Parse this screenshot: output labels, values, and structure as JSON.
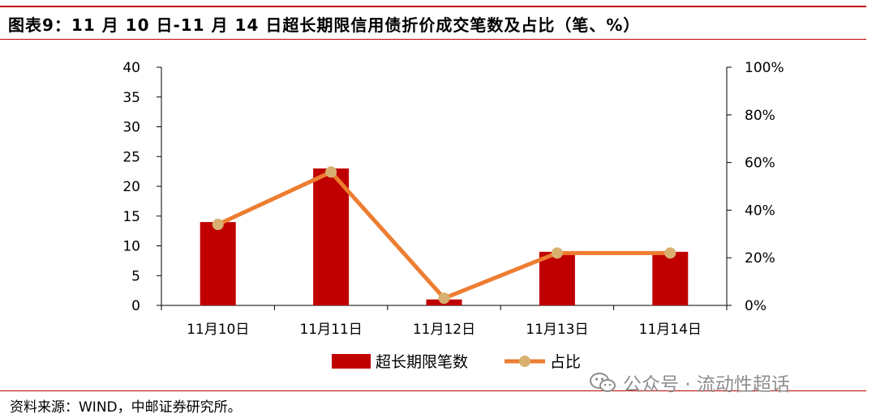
{
  "title": "图表9：11 月 10 日-11 月 14 日超长期限信用债折价成交笔数及占比（笔、%）",
  "source": "资料来源：WIND，中邮证券研究所。",
  "watermark": "公众号 · 流动性超话",
  "colors": {
    "bar": "#c00000",
    "line": "#ed7d31",
    "marker": "#d8b070",
    "rule": "#c00000"
  },
  "chart_data": {
    "type": "bar",
    "categories": [
      "11月10日",
      "11月11日",
      "11月12日",
      "11月13日",
      "11月14日"
    ],
    "series": [
      {
        "name": "超长期限笔数",
        "type": "bar",
        "axis": "left",
        "values": [
          14,
          23,
          1,
          9,
          9
        ]
      },
      {
        "name": "占比",
        "type": "line",
        "axis": "right",
        "values": [
          34,
          56,
          3,
          22,
          22
        ]
      }
    ],
    "y_left": {
      "lim": [
        0,
        40
      ],
      "ticks": [
        "0",
        "5",
        "10",
        "15",
        "20",
        "25",
        "30",
        "35",
        "40"
      ]
    },
    "y_right": {
      "lim": [
        0,
        100
      ],
      "ticks": [
        "0%",
        "20%",
        "40%",
        "60%",
        "80%",
        "100%"
      ]
    },
    "grid": false,
    "legend_position": "bottom"
  }
}
